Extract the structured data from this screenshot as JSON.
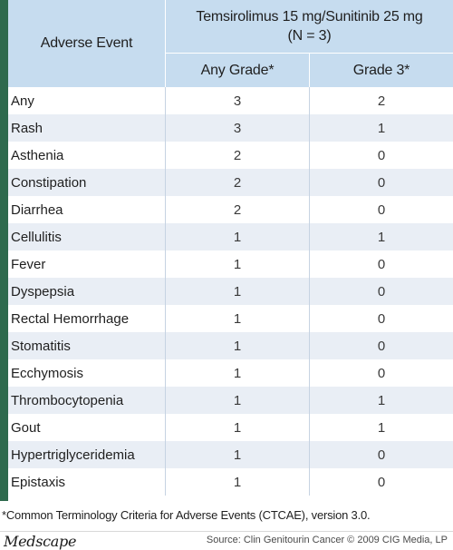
{
  "header": {
    "adverse_event": "Adverse Event",
    "regimen_line1": "Temsirolimus 15 mg/Sunitinib 25 mg",
    "regimen_line2": "(N = 3)",
    "any_grade": "Any Grade*",
    "grade3": "Grade 3*"
  },
  "rows": [
    {
      "event": "Any",
      "any": "3",
      "g3": "2"
    },
    {
      "event": "Rash",
      "any": "3",
      "g3": "1"
    },
    {
      "event": "Asthenia",
      "any": "2",
      "g3": "0"
    },
    {
      "event": "Constipation",
      "any": "2",
      "g3": "0"
    },
    {
      "event": "Diarrhea",
      "any": "2",
      "g3": "0"
    },
    {
      "event": "Cellulitis",
      "any": "1",
      "g3": "1"
    },
    {
      "event": "Fever",
      "any": "1",
      "g3": "0"
    },
    {
      "event": "Dyspepsia",
      "any": "1",
      "g3": "0"
    },
    {
      "event": "Rectal Hemorrhage",
      "any": "1",
      "g3": "0"
    },
    {
      "event": "Stomatitis",
      "any": "1",
      "g3": "0"
    },
    {
      "event": "Ecchymosis",
      "any": "1",
      "g3": "0"
    },
    {
      "event": "Thrombocytopenia",
      "any": "1",
      "g3": "1"
    },
    {
      "event": "Gout",
      "any": "1",
      "g3": "1"
    },
    {
      "event": "Hypertriglyceridemia",
      "any": "1",
      "g3": "0"
    },
    {
      "event": "Epistaxis",
      "any": "1",
      "g3": "0"
    }
  ],
  "footnote": "*Common Terminology Criteria for Adverse Events (CTCAE), version 3.0.",
  "footer": {
    "logo": "Medscape",
    "source": "Source: Clin Genitourin Cancer © 2009 CIG Media, LP"
  }
}
